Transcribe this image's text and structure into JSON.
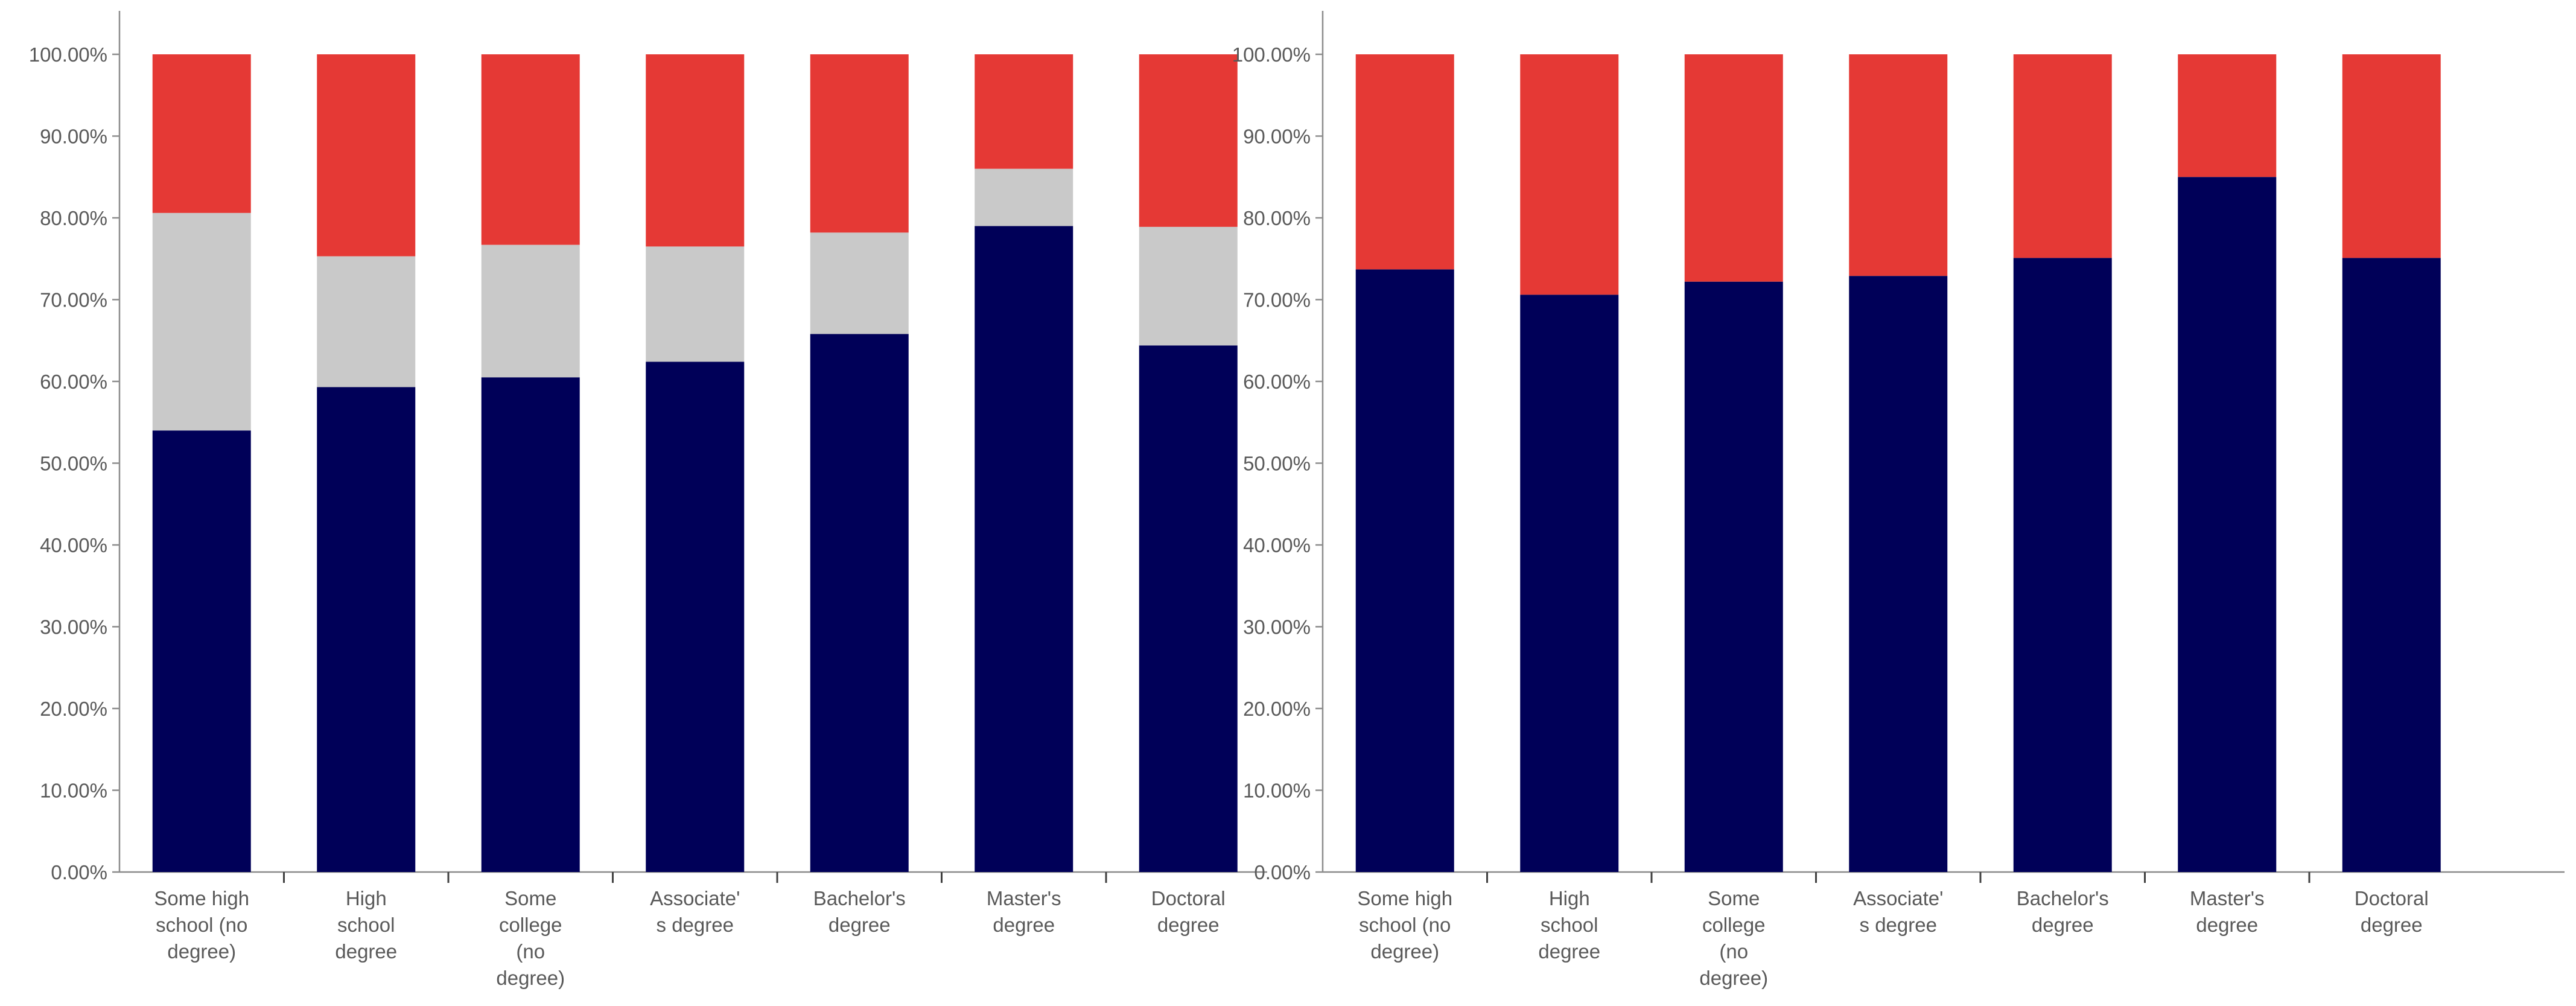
{
  "chart_data": [
    {
      "type": "bar",
      "stacked": true,
      "title": "",
      "xlabel": "",
      "ylabel": "",
      "ylim": [
        0,
        100
      ],
      "yticks": [
        0,
        10,
        20,
        30,
        40,
        50,
        60,
        70,
        80,
        90,
        100
      ],
      "ytick_labels": [
        "0.00%",
        "10.00%",
        "20.00%",
        "30.00%",
        "40.00%",
        "50.00%",
        "60.00%",
        "70.00%",
        "80.00%",
        "90.00%",
        "100.00%"
      ],
      "grid": false,
      "categories": [
        [
          "Some high",
          "school (no",
          "degree)"
        ],
        [
          "High",
          "school",
          "degree"
        ],
        [
          "Some",
          "college",
          "(no",
          "degree)"
        ],
        [
          "Associate'",
          "s degree"
        ],
        [
          "Bachelor's",
          "degree"
        ],
        [
          "Master's",
          "degree"
        ],
        [
          "Doctoral",
          "degree"
        ]
      ],
      "series": [
        {
          "name": "Navy segment",
          "color": "#000058",
          "values": [
            54.0,
            59.3,
            60.5,
            62.4,
            65.8,
            79.0,
            64.4
          ]
        },
        {
          "name": "Gray segment",
          "color": "#c9c9c9",
          "values": [
            26.6,
            16.0,
            16.2,
            14.1,
            12.4,
            7.0,
            14.5
          ]
        },
        {
          "name": "Red segment",
          "color": "#e53935",
          "values": [
            19.4,
            24.7,
            23.3,
            23.5,
            21.8,
            14.0,
            21.1
          ]
        }
      ]
    },
    {
      "type": "bar",
      "stacked": true,
      "title": "",
      "xlabel": "",
      "ylabel": "",
      "ylim": [
        0,
        100
      ],
      "yticks": [
        0,
        10,
        20,
        30,
        40,
        50,
        60,
        70,
        80,
        90,
        100
      ],
      "ytick_labels": [
        "0.00%",
        "10.00%",
        "20.00%",
        "30.00%",
        "40.00%",
        "50.00%",
        "60.00%",
        "70.00%",
        "80.00%",
        "90.00%",
        "100.00%"
      ],
      "grid": false,
      "categories": [
        [
          "Some high",
          "school (no",
          "degree)"
        ],
        [
          "High",
          "school",
          "degree"
        ],
        [
          "Some",
          "college",
          "(no",
          "degree)"
        ],
        [
          "Associate'",
          "s degree"
        ],
        [
          "Bachelor's",
          "degree"
        ],
        [
          "Master's",
          "degree"
        ],
        [
          "Doctoral",
          "degree"
        ]
      ],
      "series": [
        {
          "name": "Navy segment",
          "color": "#000058",
          "values": [
            73.7,
            70.6,
            72.2,
            72.9,
            75.1,
            85.0,
            75.1
          ]
        },
        {
          "name": "Red segment",
          "color": "#e53935",
          "values": [
            26.3,
            29.4,
            27.8,
            27.1,
            24.9,
            15.0,
            24.9
          ]
        }
      ]
    }
  ]
}
